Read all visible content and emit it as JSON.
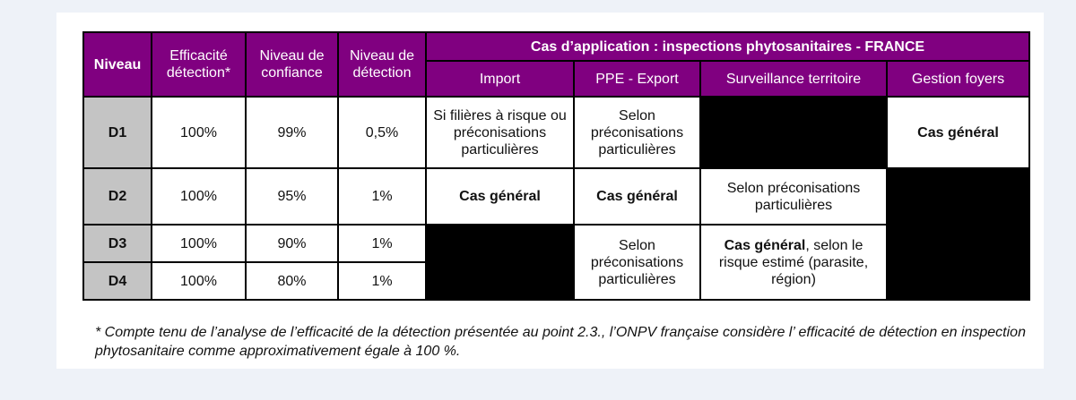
{
  "table": {
    "headers": {
      "niveau": "Niveau",
      "efficacite": "Efficacité détection*",
      "confiance": "Niveau de confiance",
      "niveau_detection": "Niveau de détection",
      "cas_application": "Cas d’application : inspections phytosanitaires - FRANCE",
      "import": "Import",
      "ppe_export": "PPE - Export",
      "surveillance": "Surveillance territoire",
      "gestion": "Gestion foyers"
    },
    "rows": [
      {
        "level": "D1",
        "efficacite": "100%",
        "confiance": "99%",
        "detection": "0,5%"
      },
      {
        "level": "D2",
        "efficacite": "100%",
        "confiance": "95%",
        "detection": "1%"
      },
      {
        "level": "D3",
        "efficacite": "100%",
        "confiance": "90%",
        "detection": "1%"
      },
      {
        "level": "D4",
        "efficacite": "100%",
        "confiance": "80%",
        "detection": "1%"
      }
    ],
    "cells": {
      "d1_import": "Si filières à risque ou préconisations particulières",
      "d1_ppe": "Selon préconisations particulières",
      "d1_gestion": "Cas général",
      "d2_import": "Cas général",
      "d2_ppe": "Cas général",
      "d2_surveillance": "Selon préconisations particulières",
      "d34_ppe": "Selon préconisations particulières",
      "d34_surveillance_bold": "Cas général",
      "d34_surveillance_rest": ", selon le risque estimé (parasite, région)"
    }
  },
  "footnote": "* Compte tenu de l’analyse de l’efficacité de la détection présentée au point 2.3., l’ONPV française considère l’ efficacité de détection en inspection phytosanitaire comme approximativement égale à 100 %.",
  "colors": {
    "header_purple": "#800080",
    "level_grey": "#c4c4c4",
    "black_fill": "#000000",
    "page_background": "#eef2f8"
  }
}
